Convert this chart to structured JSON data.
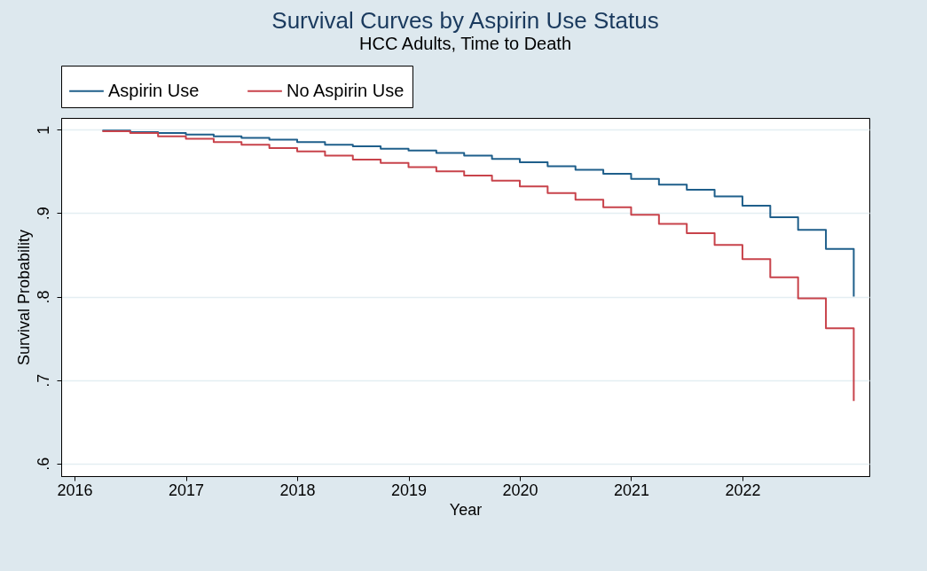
{
  "chart_data": {
    "type": "step",
    "title": "Survival Curves by Aspirin Use Status",
    "subtitle": "HCC Adults, Time to Death",
    "xlabel": "Year",
    "ylabel": "Survival Probability",
    "x": [
      2016.25,
      2016.5,
      2016.75,
      2017,
      2017.25,
      2017.5,
      2017.75,
      2018,
      2018.25,
      2018.5,
      2018.75,
      2019,
      2019.25,
      2019.5,
      2019.75,
      2020,
      2020.25,
      2020.5,
      2020.75,
      2021,
      2021.25,
      2021.5,
      2021.75,
      2022,
      2022.25,
      2022.5,
      2022.75,
      2023
    ],
    "series": [
      {
        "name": "Aspirin Use",
        "color": "#1f5f8b",
        "values": [
          0.999,
          0.997,
          0.996,
          0.994,
          0.992,
          0.99,
          0.988,
          0.985,
          0.982,
          0.98,
          0.977,
          0.975,
          0.972,
          0.969,
          0.965,
          0.961,
          0.956,
          0.952,
          0.947,
          0.941,
          0.934,
          0.928,
          0.92,
          0.909,
          0.895,
          0.88,
          0.857,
          0.8
        ]
      },
      {
        "name": "No Aspirin Use",
        "color": "#c8434b",
        "values": [
          0.998,
          0.996,
          0.992,
          0.989,
          0.985,
          0.982,
          0.978,
          0.974,
          0.969,
          0.964,
          0.96,
          0.955,
          0.95,
          0.945,
          0.939,
          0.932,
          0.924,
          0.916,
          0.907,
          0.898,
          0.887,
          0.876,
          0.862,
          0.845,
          0.823,
          0.798,
          0.762,
          0.675
        ]
      }
    ],
    "xlim": [
      2015.88,
      2023.14
    ],
    "xticks": [
      2016,
      2017,
      2018,
      2019,
      2020,
      2021,
      2022
    ],
    "ylim": [
      0.585,
      1.014
    ],
    "yticks": [
      {
        "value": 0.6,
        "label": ".6"
      },
      {
        "value": 0.7,
        "label": ".7"
      },
      {
        "value": 0.8,
        "label": ".8"
      },
      {
        "value": 0.9,
        "label": ".9"
      },
      1
    ],
    "grid": "y",
    "legend": "top",
    "marker": "none"
  }
}
